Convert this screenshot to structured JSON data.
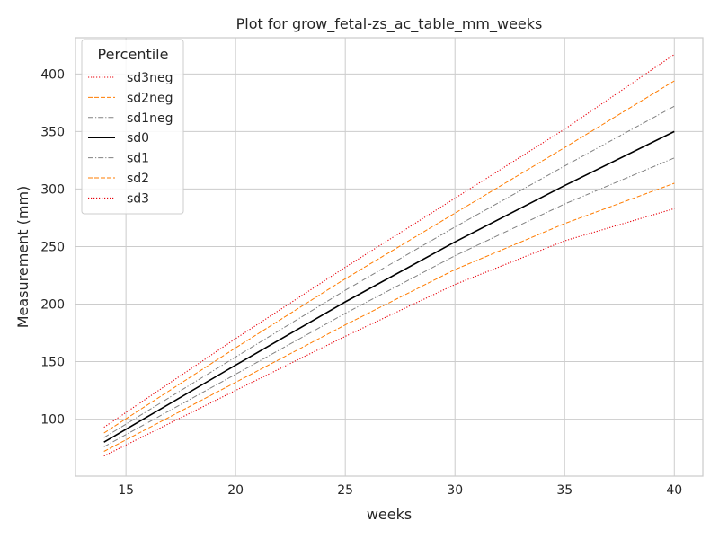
{
  "chart_data": {
    "type": "line",
    "title": "Plot for grow_fetal-zs_ac_table_mm_weeks",
    "xlabel": "weeks",
    "ylabel": "Measurement (mm)",
    "xlim": [
      12.7,
      41.3
    ],
    "ylim": [
      50.5,
      431.5
    ],
    "xticks": [
      15,
      20,
      25,
      30,
      35,
      40
    ],
    "yticks": [
      100,
      150,
      200,
      250,
      300,
      350,
      400
    ],
    "grid": true,
    "legend": {
      "title": "Percentile",
      "position": "top-left"
    },
    "x": [
      14,
      20,
      25,
      30,
      35,
      40
    ],
    "series": [
      {
        "name": "sd3neg",
        "color": "#e8000b",
        "dash": "dotted",
        "values": [
          68,
          125,
          172,
          217,
          255,
          283
        ]
      },
      {
        "name": "sd2neg",
        "color": "#ff7c00",
        "dash": "dashed",
        "values": [
          72,
          132,
          182,
          230,
          270,
          305
        ]
      },
      {
        "name": "sd1neg",
        "color": "#808080",
        "dash": "dashdot",
        "values": [
          76,
          139,
          192,
          242,
          287,
          327
        ]
      },
      {
        "name": "sd0",
        "color": "#000000",
        "dash": "solid",
        "values": [
          80,
          147,
          202,
          254,
          303,
          350
        ]
      },
      {
        "name": "sd1",
        "color": "#808080",
        "dash": "dashdot",
        "values": [
          84,
          154,
          212,
          267,
          320,
          372
        ]
      },
      {
        "name": "sd2",
        "color": "#ff7c00",
        "dash": "dashed",
        "values": [
          88,
          162,
          222,
          279,
          336,
          394
        ]
      },
      {
        "name": "sd3",
        "color": "#e8000b",
        "dash": "dotted",
        "values": [
          93,
          170,
          232,
          292,
          352,
          417
        ]
      }
    ]
  }
}
